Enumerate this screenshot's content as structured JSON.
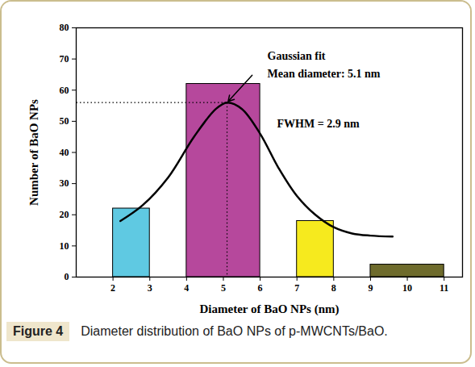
{
  "chart_data": {
    "type": "histogram",
    "x_label": "Diameter of BaO NPs (nm)",
    "y_label": "Number of BaO NPs",
    "x_start": [
      2,
      4,
      7,
      9
    ],
    "x_end": [
      3,
      6,
      8,
      11
    ],
    "values": [
      22,
      62,
      18,
      4
    ],
    "colors": [
      "#5fc9e2",
      "#b6489c",
      "#f6ea1e",
      "#6e6b2c"
    ],
    "xlim": [
      1,
      11.5
    ],
    "xticks": [
      2,
      3,
      4,
      5,
      6,
      7,
      8,
      9,
      10,
      11
    ],
    "ylim": [
      0,
      80
    ],
    "yticks": [
      0,
      10,
      20,
      30,
      40,
      50,
      60,
      70,
      80
    ],
    "fit": {
      "name": "Gaussian fit",
      "x": [
        2.2,
        2.8,
        3.5,
        4.2,
        4.8,
        5.1,
        5.5,
        6.0,
        6.5,
        7.0,
        7.5,
        8.0,
        8.5,
        9.0,
        9.6
      ],
      "values": [
        18,
        23,
        32,
        45,
        54,
        56,
        54,
        46,
        35,
        26,
        20,
        16,
        14,
        13.3,
        13
      ],
      "color": "#000000",
      "line_style": "solid"
    },
    "peak": {
      "x": 5.1,
      "y": 56
    },
    "annotations": [
      "Gaussian fit",
      "Mean diameter: 5.1 nm",
      "FWHM = 2.9 nm"
    ],
    "figure_label": "Figure 4",
    "caption": "Diameter distribution of BaO NPs of p-MWCNTs/BaO."
  }
}
